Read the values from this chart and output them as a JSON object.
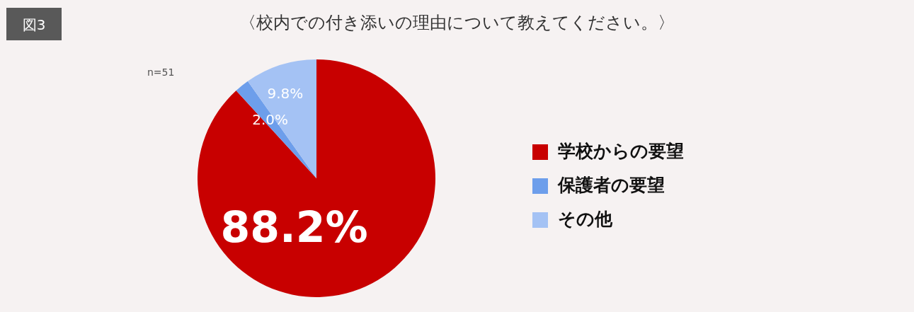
{
  "chart_data": {
    "type": "pie",
    "title": "〈校内での付き添いの理由について教えてください。〉",
    "categories": [
      "学校からの要望",
      "保護者の要望",
      "その他"
    ],
    "values": [
      88.2,
      2.0,
      9.8
    ],
    "value_labels": [
      "88.2%",
      "2.0%",
      "9.8%"
    ],
    "colors": [
      "#c80000",
      "#6d9eeb",
      "#a4c2f4"
    ],
    "legend": "right",
    "annotations": [
      "図3",
      "n=51"
    ]
  }
}
